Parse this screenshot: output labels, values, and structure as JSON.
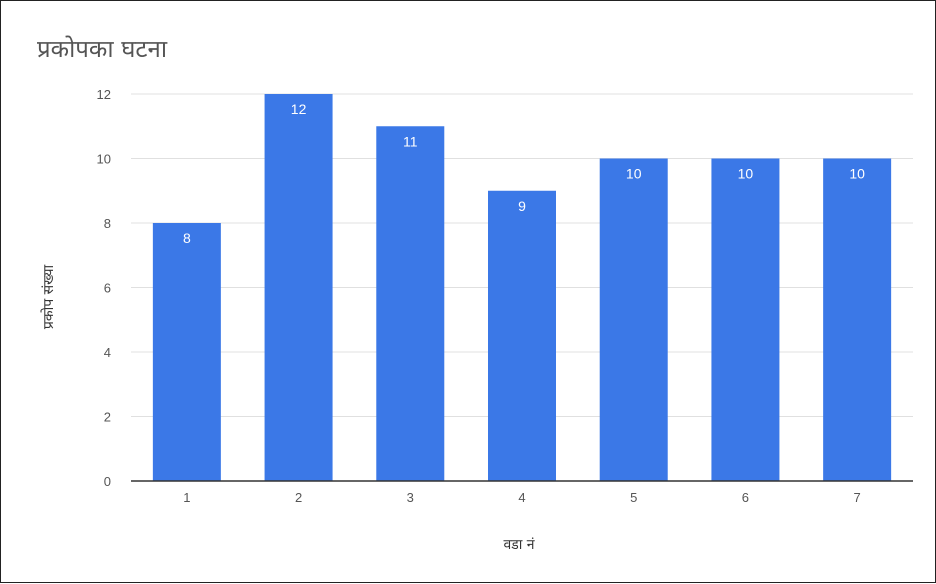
{
  "chart_data": {
    "type": "bar",
    "title": "प्रकोपका घटना",
    "xlabel": "वडा नं",
    "ylabel": "प्रकोप संख्या",
    "categories": [
      "1",
      "2",
      "3",
      "4",
      "5",
      "6",
      "7"
    ],
    "values": [
      8,
      12,
      11,
      9,
      10,
      10,
      10
    ],
    "ylim": [
      0,
      12
    ],
    "yticks": [
      "0",
      "2",
      "4",
      "6",
      "8",
      "10",
      "12"
    ],
    "data_labels": [
      "8",
      "12",
      "11",
      "9",
      "10",
      "10",
      "10"
    ],
    "bar_color": "#3b78e7",
    "grid": true,
    "legend": "none"
  }
}
